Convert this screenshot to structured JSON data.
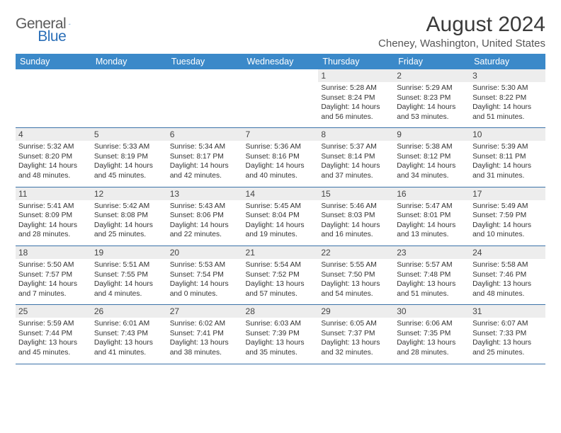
{
  "brand": {
    "part1": "General",
    "part2": "Blue",
    "accent_color": "#2b6fb8",
    "shape_color": "#1f5fa8"
  },
  "title": "August 2024",
  "location": "Cheney, Washington, United States",
  "colors": {
    "header_bg": "#3b89c9",
    "header_text": "#ffffff",
    "daynum_bg": "#ededed",
    "row_border": "#3b72a8",
    "body_text": "#333333",
    "page_bg": "#ffffff"
  },
  "typography": {
    "title_fontsize": 30,
    "location_fontsize": 15,
    "dayname_fontsize": 12.5,
    "daynum_fontsize": 12,
    "cell_fontsize": 10.3
  },
  "day_names": [
    "Sunday",
    "Monday",
    "Tuesday",
    "Wednesday",
    "Thursday",
    "Friday",
    "Saturday"
  ],
  "weeks": [
    [
      null,
      null,
      null,
      null,
      {
        "n": "1",
        "sunrise": "5:28 AM",
        "sunset": "8:24 PM",
        "daylight": "14 hours and 56 minutes."
      },
      {
        "n": "2",
        "sunrise": "5:29 AM",
        "sunset": "8:23 PM",
        "daylight": "14 hours and 53 minutes."
      },
      {
        "n": "3",
        "sunrise": "5:30 AM",
        "sunset": "8:22 PM",
        "daylight": "14 hours and 51 minutes."
      }
    ],
    [
      {
        "n": "4",
        "sunrise": "5:32 AM",
        "sunset": "8:20 PM",
        "daylight": "14 hours and 48 minutes."
      },
      {
        "n": "5",
        "sunrise": "5:33 AM",
        "sunset": "8:19 PM",
        "daylight": "14 hours and 45 minutes."
      },
      {
        "n": "6",
        "sunrise": "5:34 AM",
        "sunset": "8:17 PM",
        "daylight": "14 hours and 42 minutes."
      },
      {
        "n": "7",
        "sunrise": "5:36 AM",
        "sunset": "8:16 PM",
        "daylight": "14 hours and 40 minutes."
      },
      {
        "n": "8",
        "sunrise": "5:37 AM",
        "sunset": "8:14 PM",
        "daylight": "14 hours and 37 minutes."
      },
      {
        "n": "9",
        "sunrise": "5:38 AM",
        "sunset": "8:12 PM",
        "daylight": "14 hours and 34 minutes."
      },
      {
        "n": "10",
        "sunrise": "5:39 AM",
        "sunset": "8:11 PM",
        "daylight": "14 hours and 31 minutes."
      }
    ],
    [
      {
        "n": "11",
        "sunrise": "5:41 AM",
        "sunset": "8:09 PM",
        "daylight": "14 hours and 28 minutes."
      },
      {
        "n": "12",
        "sunrise": "5:42 AM",
        "sunset": "8:08 PM",
        "daylight": "14 hours and 25 minutes."
      },
      {
        "n": "13",
        "sunrise": "5:43 AM",
        "sunset": "8:06 PM",
        "daylight": "14 hours and 22 minutes."
      },
      {
        "n": "14",
        "sunrise": "5:45 AM",
        "sunset": "8:04 PM",
        "daylight": "14 hours and 19 minutes."
      },
      {
        "n": "15",
        "sunrise": "5:46 AM",
        "sunset": "8:03 PM",
        "daylight": "14 hours and 16 minutes."
      },
      {
        "n": "16",
        "sunrise": "5:47 AM",
        "sunset": "8:01 PM",
        "daylight": "14 hours and 13 minutes."
      },
      {
        "n": "17",
        "sunrise": "5:49 AM",
        "sunset": "7:59 PM",
        "daylight": "14 hours and 10 minutes."
      }
    ],
    [
      {
        "n": "18",
        "sunrise": "5:50 AM",
        "sunset": "7:57 PM",
        "daylight": "14 hours and 7 minutes."
      },
      {
        "n": "19",
        "sunrise": "5:51 AM",
        "sunset": "7:55 PM",
        "daylight": "14 hours and 4 minutes."
      },
      {
        "n": "20",
        "sunrise": "5:53 AM",
        "sunset": "7:54 PM",
        "daylight": "14 hours and 0 minutes."
      },
      {
        "n": "21",
        "sunrise": "5:54 AM",
        "sunset": "7:52 PM",
        "daylight": "13 hours and 57 minutes."
      },
      {
        "n": "22",
        "sunrise": "5:55 AM",
        "sunset": "7:50 PM",
        "daylight": "13 hours and 54 minutes."
      },
      {
        "n": "23",
        "sunrise": "5:57 AM",
        "sunset": "7:48 PM",
        "daylight": "13 hours and 51 minutes."
      },
      {
        "n": "24",
        "sunrise": "5:58 AM",
        "sunset": "7:46 PM",
        "daylight": "13 hours and 48 minutes."
      }
    ],
    [
      {
        "n": "25",
        "sunrise": "5:59 AM",
        "sunset": "7:44 PM",
        "daylight": "13 hours and 45 minutes."
      },
      {
        "n": "26",
        "sunrise": "6:01 AM",
        "sunset": "7:43 PM",
        "daylight": "13 hours and 41 minutes."
      },
      {
        "n": "27",
        "sunrise": "6:02 AM",
        "sunset": "7:41 PM",
        "daylight": "13 hours and 38 minutes."
      },
      {
        "n": "28",
        "sunrise": "6:03 AM",
        "sunset": "7:39 PM",
        "daylight": "13 hours and 35 minutes."
      },
      {
        "n": "29",
        "sunrise": "6:05 AM",
        "sunset": "7:37 PM",
        "daylight": "13 hours and 32 minutes."
      },
      {
        "n": "30",
        "sunrise": "6:06 AM",
        "sunset": "7:35 PM",
        "daylight": "13 hours and 28 minutes."
      },
      {
        "n": "31",
        "sunrise": "6:07 AM",
        "sunset": "7:33 PM",
        "daylight": "13 hours and 25 minutes."
      }
    ]
  ],
  "labels": {
    "sunrise": "Sunrise:",
    "sunset": "Sunset:",
    "daylight": "Daylight:"
  }
}
